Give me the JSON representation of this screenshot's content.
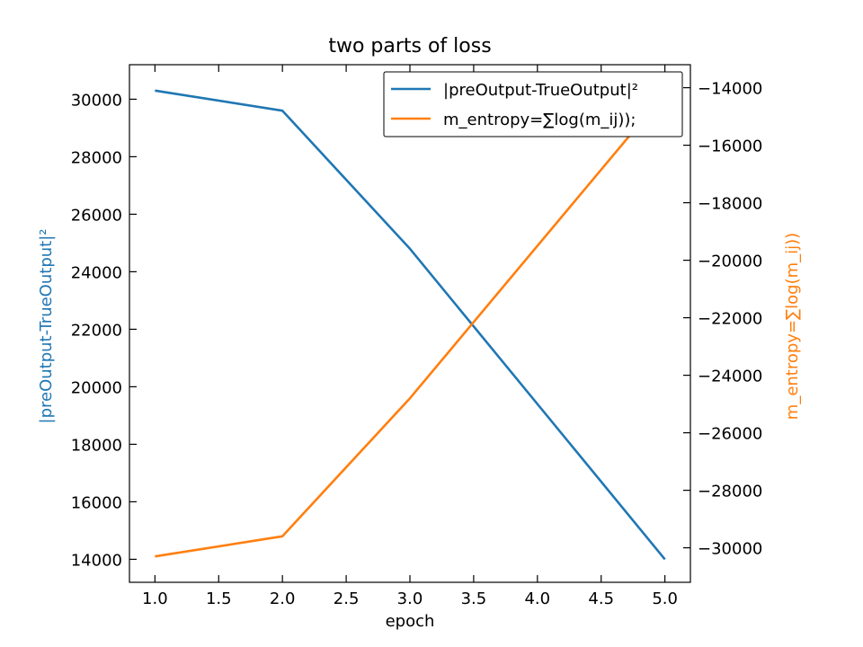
{
  "chart_data": {
    "type": "line",
    "title": "two parts of loss",
    "xlabel": "epoch",
    "ylabel_left": "|preOutput-TrueOutput|²",
    "ylabel_right": "m_entropy=∑log(m_ij))",
    "x": [
      1.0,
      2.0,
      3.0,
      5.0
    ],
    "xlim": [
      0.8,
      5.2
    ],
    "ylim_left": [
      13200,
      31200
    ],
    "ylim_right": [
      -31200,
      -13200
    ],
    "x_ticks": [
      1.0,
      1.5,
      2.0,
      2.5,
      3.0,
      3.5,
      4.0,
      4.5,
      5.0
    ],
    "x_tick_labels": [
      "1.0",
      "1.5",
      "2.0",
      "2.5",
      "3.0",
      "3.5",
      "4.0",
      "4.5",
      "5.0"
    ],
    "y_left_ticks": [
      14000,
      16000,
      18000,
      20000,
      22000,
      24000,
      26000,
      28000,
      30000
    ],
    "y_left_tick_labels": [
      "14000",
      "16000",
      "18000",
      "20000",
      "22000",
      "24000",
      "26000",
      "28000",
      "30000"
    ],
    "y_right_ticks": [
      -30000,
      -28000,
      -26000,
      -24000,
      -22000,
      -20000,
      -18000,
      -16000,
      -14000
    ],
    "y_right_tick_labels": [
      "−30000",
      "−28000",
      "−26000",
      "−24000",
      "−22000",
      "−20000",
      "−18000",
      "−16000",
      "−14000"
    ],
    "grid": false,
    "legend_position": "top-right",
    "series": [
      {
        "name": "|preOutput-TrueOutput|²",
        "axis": "left",
        "color": "#1f77b4",
        "values": [
          30300,
          29600,
          24800,
          14000
        ]
      },
      {
        "name": "m_entropy=∑log(m_ij));",
        "axis": "right",
        "color": "#ff7f0e",
        "values": [
          -30300,
          -29600,
          -24800,
          -14200
        ]
      }
    ]
  }
}
